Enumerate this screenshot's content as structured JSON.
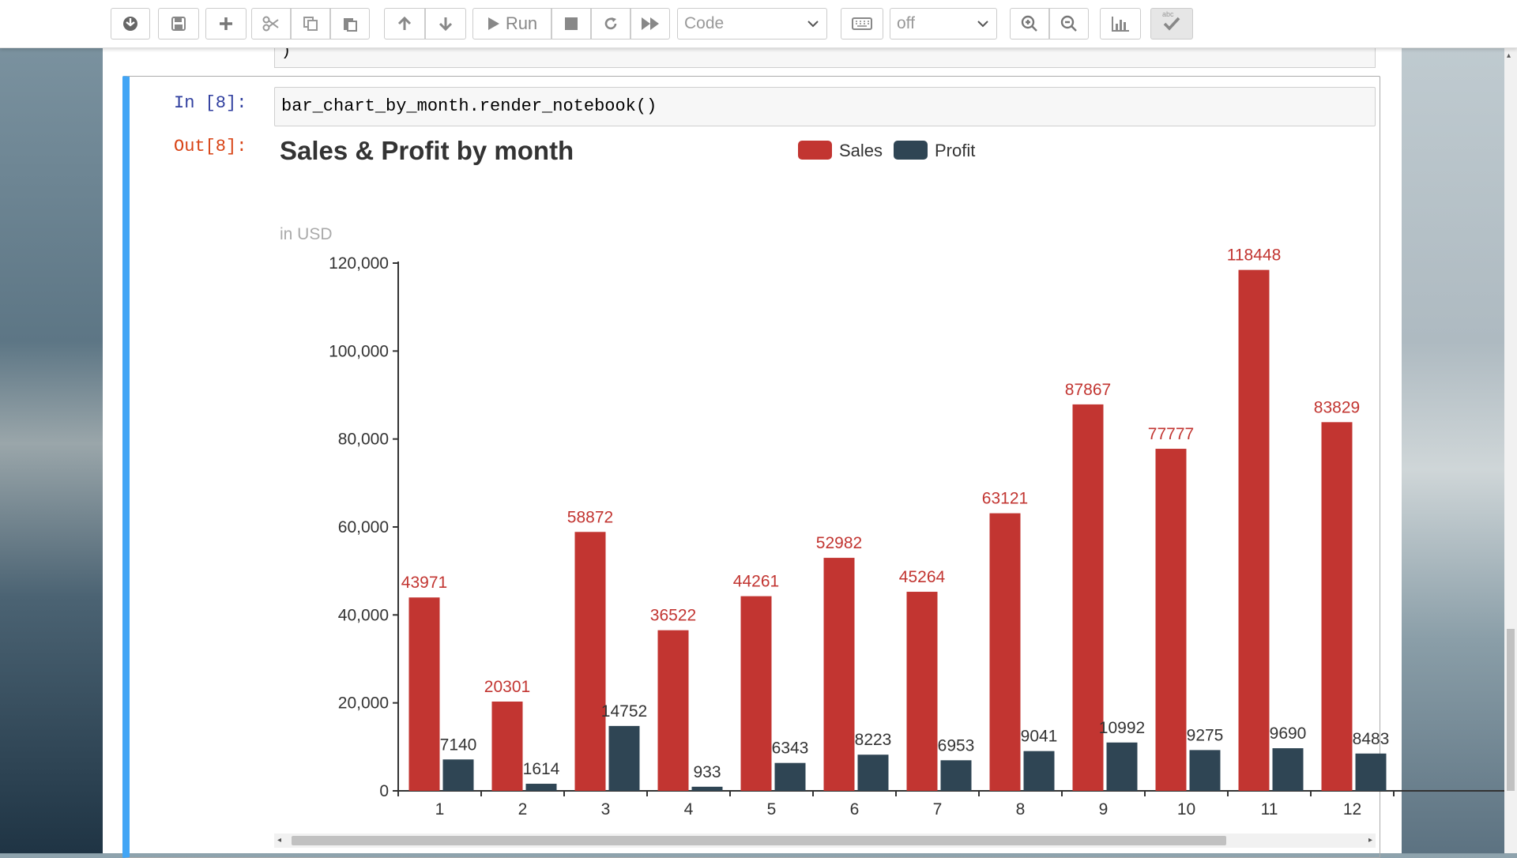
{
  "toolbar": {
    "run_label": "Run",
    "cell_type": "Code",
    "celltoolbar": "off",
    "spell_badge": "abc"
  },
  "notebook": {
    "prev_cell_text": ")",
    "in_prompt": "In [8]:",
    "out_prompt": "Out[8]:",
    "code": "bar_chart_by_month.render_notebook()"
  },
  "colors": {
    "sales": "#c23531",
    "profit": "#2f4554",
    "cell_border": "#42a5f5"
  },
  "chart_data": {
    "type": "bar",
    "title": "Sales & Profit by month",
    "subtitle": "in USD",
    "categories": [
      "1",
      "2",
      "3",
      "4",
      "5",
      "6",
      "7",
      "8",
      "9",
      "10",
      "11",
      "12"
    ],
    "series": [
      {
        "name": "Sales",
        "values": [
          43971,
          20301,
          58872,
          36522,
          44261,
          52982,
          45264,
          63121,
          87867,
          77777,
          118448,
          83829
        ]
      },
      {
        "name": "Profit",
        "values": [
          7140,
          1614,
          14752,
          933,
          6343,
          8223,
          6953,
          9041,
          10992,
          9275,
          9690,
          8483
        ]
      }
    ],
    "yticks": [
      "0",
      "20,000",
      "40,000",
      "60,000",
      "80,000",
      "100,000",
      "120,000"
    ],
    "ylim": [
      0,
      120000
    ],
    "legend_position": "top-center",
    "grid": false
  }
}
